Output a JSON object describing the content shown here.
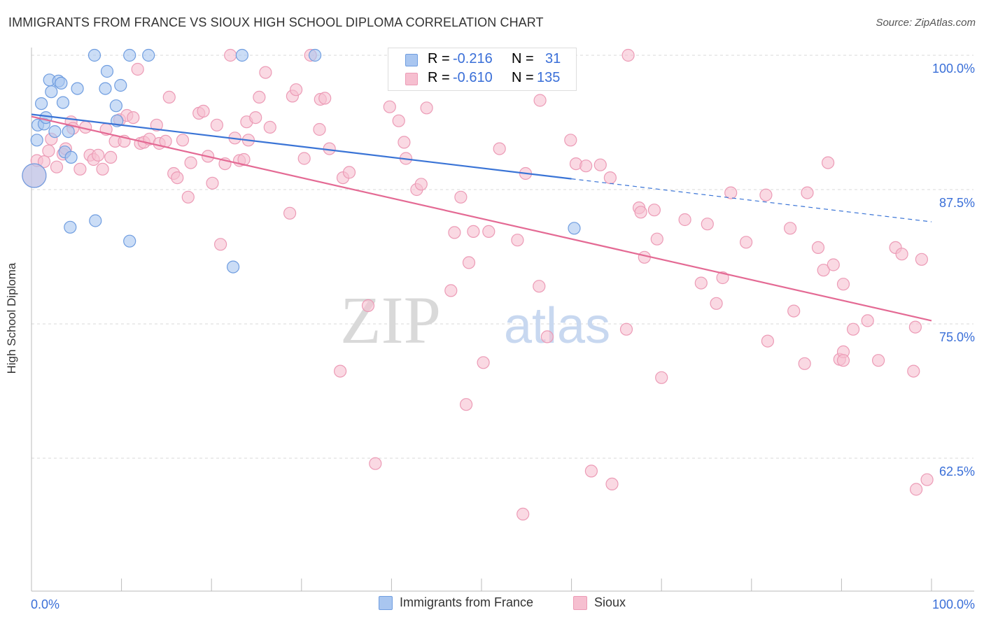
{
  "header": {
    "title": "IMMIGRANTS FROM FRANCE VS SIOUX HIGH SCHOOL DIPLOMA CORRELATION CHART",
    "source": "Source: ZipAtlas.com"
  },
  "watermark": {
    "zip": "ZIP",
    "atlas": "atlas"
  },
  "colors": {
    "blue_fill": "#a9c6f0",
    "blue_stroke": "#6f9de0",
    "blue_line": "#3a74d6",
    "pink_fill": "#f6bfd0",
    "pink_stroke": "#ec9bb6",
    "pink_line": "#e46a94",
    "axis_label_blue": "#3a6fd8"
  },
  "legend_top": {
    "rows": [
      {
        "r_label": "R =",
        "r_value": "-0.216",
        "n_label": "N =",
        "n_value": "31",
        "series": "blue"
      },
      {
        "r_label": "R =",
        "r_value": "-0.610",
        "n_label": "N =",
        "n_value": "135",
        "series": "pink"
      }
    ]
  },
  "legend_bottom": {
    "items": [
      {
        "label": "Immigrants from France",
        "series": "blue"
      },
      {
        "label": "Sioux",
        "series": "pink"
      }
    ]
  },
  "chart_data": {
    "type": "scatter",
    "title": "IMMIGRANTS FROM FRANCE VS SIOUX HIGH SCHOOL DIPLOMA CORRELATION CHART",
    "xlabel": "",
    "ylabel": "High School Diploma",
    "xlim": [
      0,
      100
    ],
    "ylim": [
      50,
      102.5
    ],
    "x_tick_labels": [
      "0.0%",
      "100.0%"
    ],
    "y_ticks": [
      62.5,
      75.0,
      87.5,
      100.0
    ],
    "y_tick_labels": [
      "62.5%",
      "75.0%",
      "87.5%",
      "100.0%"
    ],
    "grid": true,
    "series": [
      {
        "name": "Immigrants from France",
        "color": "blue",
        "R": -0.216,
        "N": 31,
        "trend": {
          "x0": 0,
          "y0": 94.5,
          "x1": 60,
          "y1": 88.5,
          "dash_to_x": 100,
          "dash_to_y": 84.5
        },
        "points": [
          [
            0.3,
            88.8
          ],
          [
            0.6,
            92.1
          ],
          [
            0.7,
            93.5
          ],
          [
            1.1,
            95.5
          ],
          [
            1.4,
            93.6
          ],
          [
            1.6,
            94.2
          ],
          [
            2.0,
            97.7
          ],
          [
            2.2,
            96.6
          ],
          [
            2.6,
            92.9
          ],
          [
            3.0,
            97.6
          ],
          [
            3.3,
            97.4
          ],
          [
            3.5,
            95.6
          ],
          [
            3.7,
            91.0
          ],
          [
            4.1,
            92.9
          ],
          [
            4.4,
            90.5
          ],
          [
            5.1,
            96.9
          ],
          [
            4.3,
            84.0
          ],
          [
            7.0,
            100.0
          ],
          [
            8.2,
            96.9
          ],
          [
            8.4,
            98.5
          ],
          [
            7.1,
            84.6
          ],
          [
            9.4,
            95.3
          ],
          [
            9.5,
            93.9
          ],
          [
            9.9,
            97.2
          ],
          [
            10.9,
            82.7
          ],
          [
            10.9,
            100.0
          ],
          [
            13.0,
            100.0
          ],
          [
            22.4,
            80.3
          ],
          [
            23.4,
            100.0
          ],
          [
            31.5,
            100.0
          ],
          [
            60.3,
            83.9
          ]
        ]
      },
      {
        "name": "Sioux",
        "color": "pink",
        "R": -0.61,
        "N": 135,
        "trend": {
          "x0": 0,
          "y0": 94.3,
          "x1": 100,
          "y1": 75.3
        },
        "points": [
          [
            0.3,
            88.8
          ],
          [
            0.6,
            90.2
          ],
          [
            1.4,
            90.1
          ],
          [
            1.9,
            91.1
          ],
          [
            2.2,
            92.2
          ],
          [
            2.8,
            89.6
          ],
          [
            3.5,
            90.8
          ],
          [
            3.8,
            91.3
          ],
          [
            4.4,
            93.8
          ],
          [
            4.6,
            93.2
          ],
          [
            5.4,
            89.4
          ],
          [
            6.0,
            93.3
          ],
          [
            6.5,
            90.7
          ],
          [
            6.9,
            90.3
          ],
          [
            7.4,
            90.7
          ],
          [
            7.9,
            89.4
          ],
          [
            8.3,
            93.1
          ],
          [
            8.8,
            90.5
          ],
          [
            9.3,
            92.0
          ],
          [
            9.8,
            94.0
          ],
          [
            10.3,
            92.0
          ],
          [
            10.6,
            94.4
          ],
          [
            11.3,
            94.2
          ],
          [
            11.8,
            98.7
          ],
          [
            12.1,
            91.8
          ],
          [
            12.5,
            91.9
          ],
          [
            13.1,
            92.2
          ],
          [
            13.9,
            93.5
          ],
          [
            14.2,
            91.8
          ],
          [
            14.9,
            92.0
          ],
          [
            15.3,
            96.1
          ],
          [
            15.8,
            89.0
          ],
          [
            16.2,
            88.6
          ],
          [
            16.8,
            92.1
          ],
          [
            17.4,
            86.8
          ],
          [
            17.7,
            90.0
          ],
          [
            18.6,
            94.6
          ],
          [
            19.1,
            94.8
          ],
          [
            19.6,
            90.6
          ],
          [
            20.1,
            88.1
          ],
          [
            20.6,
            93.5
          ],
          [
            21.0,
            82.4
          ],
          [
            21.5,
            89.9
          ],
          [
            22.1,
            100.0
          ],
          [
            22.6,
            92.3
          ],
          [
            23.1,
            90.2
          ],
          [
            23.6,
            90.3
          ],
          [
            23.9,
            93.8
          ],
          [
            24.1,
            92.1
          ],
          [
            24.9,
            94.2
          ],
          [
            25.3,
            96.1
          ],
          [
            26.0,
            98.4
          ],
          [
            26.5,
            93.3
          ],
          [
            28.7,
            85.3
          ],
          [
            29.0,
            96.2
          ],
          [
            29.4,
            96.8
          ],
          [
            30.3,
            90.4
          ],
          [
            31.0,
            100.0
          ],
          [
            32.0,
            93.1
          ],
          [
            32.1,
            95.9
          ],
          [
            32.6,
            96.0
          ],
          [
            33.1,
            91.3
          ],
          [
            34.3,
            70.6
          ],
          [
            34.6,
            88.6
          ],
          [
            35.3,
            89.1
          ],
          [
            37.4,
            76.7
          ],
          [
            38.2,
            62.0
          ],
          [
            39.8,
            95.2
          ],
          [
            40.8,
            93.9
          ],
          [
            41.4,
            91.9
          ],
          [
            41.6,
            90.4
          ],
          [
            42.8,
            87.5
          ],
          [
            43.3,
            88.0
          ],
          [
            43.9,
            95.1
          ],
          [
            46.6,
            78.1
          ],
          [
            47.0,
            83.5
          ],
          [
            47.7,
            86.8
          ],
          [
            48.3,
            67.5
          ],
          [
            48.6,
            80.7
          ],
          [
            49.1,
            83.6
          ],
          [
            50.2,
            71.4
          ],
          [
            50.8,
            83.6
          ],
          [
            52.0,
            91.3
          ],
          [
            54.0,
            82.8
          ],
          [
            54.6,
            57.3
          ],
          [
            54.9,
            89.0
          ],
          [
            56.4,
            78.5
          ],
          [
            56.5,
            95.8
          ],
          [
            57.3,
            73.8
          ],
          [
            59.9,
            92.1
          ],
          [
            60.5,
            89.9
          ],
          [
            61.6,
            89.7
          ],
          [
            62.2,
            61.3
          ],
          [
            63.2,
            89.8
          ],
          [
            64.3,
            88.6
          ],
          [
            64.5,
            60.1
          ],
          [
            66.1,
            74.5
          ],
          [
            66.3,
            100.0
          ],
          [
            67.5,
            85.8
          ],
          [
            67.7,
            85.4
          ],
          [
            68.1,
            81.2
          ],
          [
            69.2,
            85.6
          ],
          [
            69.5,
            82.9
          ],
          [
            70.0,
            70.0
          ],
          [
            72.6,
            84.7
          ],
          [
            74.4,
            78.8
          ],
          [
            75.1,
            84.3
          ],
          [
            76.1,
            76.9
          ],
          [
            76.8,
            79.3
          ],
          [
            77.7,
            87.2
          ],
          [
            79.4,
            82.6
          ],
          [
            81.6,
            87.0
          ],
          [
            81.8,
            73.4
          ],
          [
            84.3,
            83.9
          ],
          [
            84.7,
            76.2
          ],
          [
            85.9,
            71.3
          ],
          [
            86.2,
            87.2
          ],
          [
            87.4,
            82.1
          ],
          [
            88.5,
            90.0
          ],
          [
            88.0,
            80.0
          ],
          [
            89.1,
            80.5
          ],
          [
            89.8,
            71.7
          ],
          [
            90.2,
            72.4
          ],
          [
            90.2,
            78.7
          ],
          [
            90.2,
            71.6
          ],
          [
            91.3,
            74.5
          ],
          [
            92.9,
            75.3
          ],
          [
            94.1,
            71.6
          ],
          [
            96.0,
            82.1
          ],
          [
            96.7,
            81.5
          ],
          [
            98.0,
            70.6
          ],
          [
            98.2,
            74.7
          ],
          [
            98.3,
            59.6
          ],
          [
            98.9,
            81.0
          ],
          [
            99.5,
            60.5
          ]
        ]
      }
    ]
  }
}
